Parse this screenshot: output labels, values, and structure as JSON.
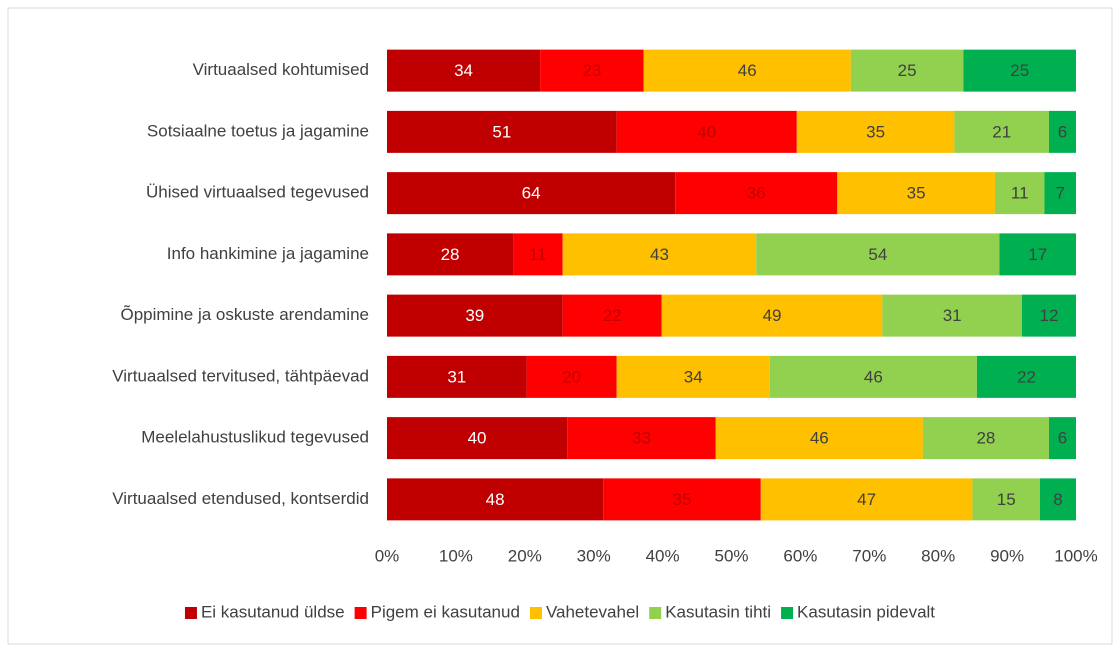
{
  "chart_data": {
    "type": "bar",
    "orientation": "horizontal",
    "stacking": "percent",
    "categories": [
      "Virtuaalsed kohtumised",
      "Sotsiaalne toetus ja jagamine",
      "Ühised virtuaalsed tegevused",
      "Info hankimine ja jagamine",
      "Õppimine ja oskuste arendamine",
      "Virtuaalsed tervitused, tähtpäevad",
      "Meelelahustuslikud tegevused",
      "Virtuaalsed etendused, kontserdid"
    ],
    "series": [
      {
        "name": "Ei kasutanud üldse",
        "color": "#c00000",
        "label_color": "#ffffff",
        "values": [
          34,
          51,
          64,
          28,
          39,
          31,
          40,
          48
        ]
      },
      {
        "name": "Pigem ei kasutanud",
        "color": "#ff0000",
        "label_color": "#c00000",
        "values": [
          23,
          40,
          36,
          11,
          22,
          20,
          33,
          35
        ]
      },
      {
        "name": "Vahetevahel",
        "color": "#ffc000",
        "label_color": "#404040",
        "values": [
          46,
          35,
          35,
          43,
          49,
          34,
          46,
          47
        ]
      },
      {
        "name": "Kasutasin tihti",
        "color": "#92d050",
        "label_color": "#404040",
        "values": [
          25,
          21,
          11,
          54,
          31,
          46,
          28,
          15
        ]
      },
      {
        "name": "Kasutasin pidevalt",
        "color": "#00b050",
        "label_color": "#404040",
        "values": [
          25,
          6,
          7,
          17,
          12,
          22,
          6,
          8
        ]
      }
    ],
    "xlim": [
      0,
      100
    ],
    "xticks": [
      {
        "value": 0,
        "label": "0%"
      },
      {
        "value": 10,
        "label": "10%"
      },
      {
        "value": 20,
        "label": "20%"
      },
      {
        "value": 30,
        "label": "30%"
      },
      {
        "value": 40,
        "label": "40%"
      },
      {
        "value": 50,
        "label": "50%"
      },
      {
        "value": 60,
        "label": "60%"
      },
      {
        "value": 70,
        "label": "70%"
      },
      {
        "value": 80,
        "label": "80%"
      },
      {
        "value": 90,
        "label": "90%"
      },
      {
        "value": 100,
        "label": "100%"
      }
    ],
    "legend": "bottom"
  }
}
